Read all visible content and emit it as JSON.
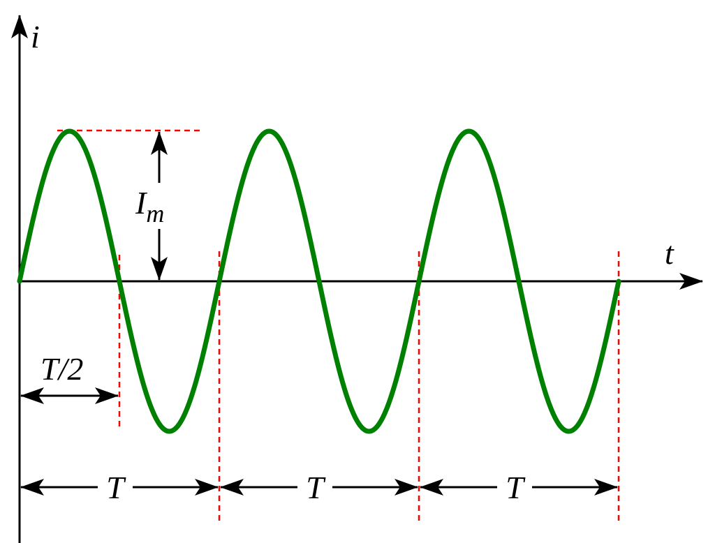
{
  "axes": {
    "vertical_label": "i",
    "horizontal_label": "t"
  },
  "amplitude_label": {
    "main": "I",
    "subscript": "m"
  },
  "half_period_label": "T/2",
  "period_labels": [
    "T",
    "T",
    "T"
  ],
  "waveform": {
    "shape": "sine",
    "cycles": 3,
    "starts_at": "zero, rising"
  },
  "colors": {
    "wave": "#008000",
    "guides": "#ff0000",
    "axes": "#000000"
  }
}
